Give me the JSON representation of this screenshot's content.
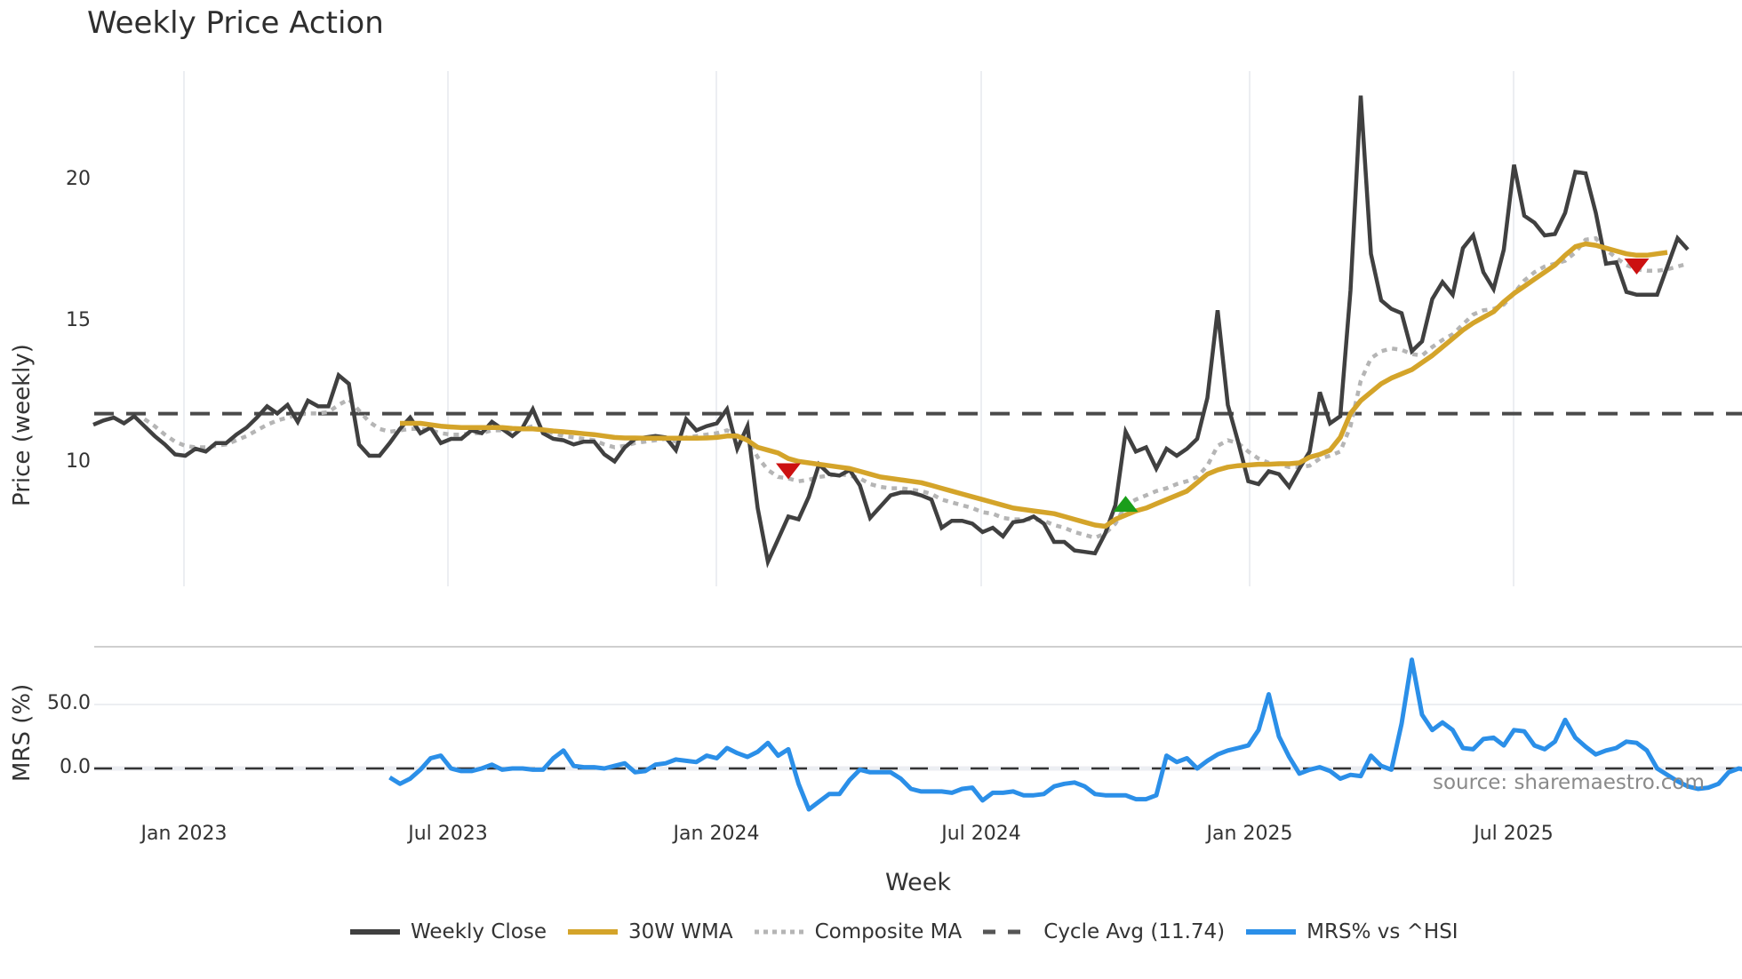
{
  "title": "Weekly Price Action",
  "axes": {
    "price_ylabel": "Price (weekly)",
    "mrs_ylabel": "MRS (%)",
    "xlabel": "Week",
    "price_yticks": [
      "20",
      "15",
      "10"
    ],
    "mrs_yticks": [
      "50.0",
      "0.0"
    ],
    "xticks": [
      "Jan 2023",
      "Jul 2023",
      "Jan 2024",
      "Jul 2024",
      "Jan 2025",
      "Jul 2025"
    ]
  },
  "source": "source: sharemaestro.com",
  "legend": [
    {
      "label": "Weekly Close",
      "color": "#404040",
      "style": "solid"
    },
    {
      "label": "30W WMA",
      "color": "#d4a42a",
      "style": "solid"
    },
    {
      "label": "Composite MA",
      "color": "#b5b5b5",
      "style": "dotted"
    },
    {
      "label": "Cycle Avg (11.74)",
      "color": "#555555",
      "style": "dashed"
    },
    {
      "label": "MRS% vs ^HSI",
      "color": "#2b8fe8",
      "style": "solid"
    }
  ],
  "colors": {
    "close": "#404040",
    "wma": "#d4a42a",
    "composite": "#b5b5b5",
    "cycle": "#4a4a4a",
    "mrs": "#2b8fe8",
    "sell_marker": "#cc1111",
    "buy_marker": "#1a9e1a",
    "grid": "#eceef2"
  },
  "chart_data": [
    {
      "type": "line",
      "title": "Weekly Price Action",
      "xlabel": "Week",
      "ylabel": "Price (weekly)",
      "ylim": [
        5.5,
        23.5
      ],
      "x_start": "2022-11-07",
      "x_step": "1 week",
      "cycle_avg": 11.74,
      "series": [
        {
          "name": "Weekly Close",
          "values": [
            11.35,
            11.5,
            11.6,
            11.4,
            11.65,
            11.3,
            10.95,
            10.65,
            10.3,
            10.25,
            10.5,
            10.4,
            10.7,
            10.7,
            11.0,
            11.25,
            11.6,
            12.0,
            11.75,
            12.05,
            11.45,
            12.2,
            12.0,
            12.0,
            13.1,
            12.8,
            10.65,
            10.25,
            10.25,
            10.7,
            11.2,
            11.6,
            11.05,
            11.25,
            10.7,
            10.85,
            10.85,
            11.15,
            11.05,
            11.45,
            11.2,
            10.95,
            11.25,
            11.9,
            11.05,
            10.85,
            10.8,
            10.65,
            10.75,
            10.75,
            10.3,
            10.05,
            10.55,
            10.85,
            10.9,
            10.95,
            10.9,
            10.45,
            11.55,
            11.15,
            11.3,
            11.4,
            11.9,
            10.5,
            11.3,
            8.4,
            6.5,
            7.3,
            8.1,
            8.0,
            8.8,
            9.95,
            9.6,
            9.55,
            9.75,
            9.2,
            8.05,
            8.45,
            8.85,
            8.95,
            8.95,
            8.85,
            8.7,
            7.7,
            7.95,
            7.95,
            7.85,
            7.55,
            7.7,
            7.4,
            7.9,
            7.95,
            8.1,
            7.85,
            7.2,
            7.2,
            6.9,
            6.85,
            6.8,
            7.5,
            8.5,
            11.1,
            10.4,
            10.55,
            9.8,
            10.5,
            10.25,
            10.5,
            10.85,
            12.3,
            15.4,
            12.05,
            10.75,
            9.35,
            9.25,
            9.7,
            9.6,
            9.15,
            9.8,
            10.4,
            12.5,
            11.4,
            11.65,
            16.1,
            23.0,
            17.4,
            15.75,
            15.45,
            15.3,
            13.95,
            14.3,
            15.8,
            16.4,
            15.95,
            17.6,
            18.05,
            16.75,
            16.15,
            17.55,
            20.55,
            18.75,
            18.5,
            18.05,
            18.1,
            18.85,
            20.3,
            20.25,
            18.85,
            17.05,
            17.1,
            16.05,
            15.95,
            15.95,
            15.95,
            16.95,
            17.95,
            17.55
          ]
        },
        {
          "name": "30W WMA",
          "values": [
            null,
            null,
            null,
            null,
            null,
            null,
            null,
            null,
            null,
            null,
            null,
            null,
            null,
            null,
            null,
            null,
            null,
            null,
            null,
            null,
            null,
            null,
            null,
            null,
            null,
            null,
            null,
            null,
            null,
            null,
            11.4,
            11.4,
            11.4,
            11.35,
            11.3,
            11.27,
            11.25,
            11.25,
            11.25,
            11.25,
            11.25,
            11.22,
            11.2,
            11.2,
            11.17,
            11.13,
            11.1,
            11.07,
            11.03,
            11.0,
            10.95,
            10.9,
            10.88,
            10.88,
            10.87,
            10.87,
            10.87,
            10.87,
            10.87,
            10.87,
            10.88,
            10.9,
            10.95,
            10.95,
            10.8,
            10.55,
            10.45,
            10.35,
            10.15,
            10.05,
            10.0,
            9.95,
            9.9,
            9.85,
            9.8,
            9.7,
            9.6,
            9.5,
            9.45,
            9.4,
            9.35,
            9.3,
            9.2,
            9.1,
            9.0,
            8.9,
            8.8,
            8.7,
            8.6,
            8.5,
            8.4,
            8.35,
            8.3,
            8.25,
            8.2,
            8.1,
            8.0,
            7.9,
            7.8,
            7.75,
            8.0,
            8.15,
            8.3,
            8.4,
            8.55,
            8.7,
            8.85,
            9.0,
            9.3,
            9.6,
            9.75,
            9.85,
            9.9,
            9.92,
            9.95,
            9.95,
            9.97,
            9.97,
            10.0,
            10.2,
            10.3,
            10.45,
            10.9,
            11.75,
            12.2,
            12.5,
            12.8,
            13.0,
            13.15,
            13.3,
            13.55,
            13.8,
            14.1,
            14.4,
            14.7,
            14.95,
            15.15,
            15.35,
            15.7,
            16.0,
            16.25,
            16.5,
            16.75,
            17.0,
            17.35,
            17.65,
            17.75,
            17.7,
            17.6,
            17.5,
            17.4,
            17.35,
            17.35,
            17.4,
            17.45
          ]
        },
        {
          "name": "Composite MA",
          "values": [
            null,
            null,
            null,
            null,
            null,
            11.55,
            11.3,
            11.0,
            10.75,
            10.6,
            10.55,
            10.55,
            10.6,
            10.65,
            10.8,
            10.95,
            11.15,
            11.35,
            11.5,
            11.6,
            11.7,
            11.75,
            11.75,
            11.8,
            12.05,
            12.25,
            11.85,
            11.45,
            11.2,
            11.1,
            11.15,
            11.2,
            11.2,
            11.15,
            11.05,
            11.0,
            11.0,
            11.05,
            11.05,
            11.15,
            11.15,
            11.15,
            11.2,
            11.3,
            11.15,
            11.05,
            10.95,
            10.9,
            10.85,
            10.8,
            10.65,
            10.55,
            10.6,
            10.7,
            10.75,
            10.8,
            10.85,
            10.75,
            10.9,
            10.95,
            11.0,
            11.05,
            11.15,
            10.95,
            10.85,
            10.2,
            9.75,
            9.5,
            9.45,
            9.35,
            9.4,
            9.5,
            9.55,
            9.6,
            9.55,
            9.45,
            9.25,
            9.15,
            9.1,
            9.1,
            9.05,
            9.0,
            8.9,
            8.7,
            8.6,
            8.5,
            8.4,
            8.25,
            8.2,
            8.05,
            8.0,
            8.0,
            8.0,
            7.95,
            7.8,
            7.7,
            7.55,
            7.45,
            7.35,
            7.5,
            7.85,
            8.5,
            8.7,
            8.85,
            9.0,
            9.1,
            9.25,
            9.35,
            9.5,
            9.9,
            10.6,
            10.8,
            10.7,
            10.4,
            10.15,
            10.0,
            9.95,
            9.85,
            9.85,
            9.9,
            10.15,
            10.25,
            10.4,
            11.3,
            12.9,
            13.7,
            13.95,
            14.05,
            14.0,
            13.85,
            13.8,
            14.1,
            14.35,
            14.55,
            14.9,
            15.25,
            15.4,
            15.45,
            15.6,
            16.0,
            16.45,
            16.75,
            16.95,
            17.05,
            17.15,
            17.45,
            17.9,
            17.95,
            17.55,
            17.25,
            17.0,
            16.85,
            16.8,
            16.8,
            16.85,
            16.95,
            17.05
          ]
        }
      ],
      "markers": [
        {
          "type": "sell",
          "shape": "triangle-down",
          "week_index": 68,
          "price": 9.7
        },
        {
          "type": "buy",
          "shape": "triangle-up",
          "week_index": 101,
          "price": 8.55
        },
        {
          "type": "sell",
          "shape": "triangle-down",
          "week_index": 151,
          "price": 16.95
        }
      ],
      "yticks": [
        10,
        15,
        20
      ],
      "xticks": [
        "Jan 2023",
        "Jul 2023",
        "Jan 2024",
        "Jul 2024",
        "Jan 2025",
        "Jul 2025"
      ]
    },
    {
      "type": "line",
      "title": "",
      "xlabel": "Week",
      "ylabel": "MRS (%)",
      "ylim": [
        -45,
        100
      ],
      "x_start": "2022-11-07",
      "x_step": "1 week",
      "reference_line": 0.0,
      "series": [
        {
          "name": "MRS% vs ^HSI",
          "values": [
            null,
            null,
            null,
            null,
            null,
            null,
            null,
            null,
            null,
            null,
            null,
            null,
            null,
            null,
            null,
            null,
            null,
            null,
            null,
            null,
            null,
            null,
            null,
            null,
            null,
            null,
            null,
            null,
            null,
            -7,
            -12,
            -8,
            -1,
            8,
            10,
            0,
            -2,
            -2,
            0,
            3,
            -1,
            0,
            0,
            -1,
            -1,
            8,
            14,
            2,
            1,
            1,
            0,
            2,
            4,
            -3,
            -2,
            3,
            4,
            7,
            6,
            5,
            10,
            8,
            16,
            12,
            9,
            13,
            20,
            10,
            15,
            -12,
            -32,
            -26,
            -20,
            -20,
            -9,
            -1,
            -3,
            -3,
            -3,
            -8,
            -16,
            -18,
            -18,
            -18,
            -19,
            -16,
            -15,
            -25,
            -19,
            -19,
            -18,
            -21,
            -21,
            -20,
            -14,
            -12,
            -11,
            -14,
            -20,
            -21,
            -21,
            -21,
            -24,
            -24,
            -21,
            10,
            5,
            8,
            0,
            6,
            11,
            14,
            16,
            18,
            30,
            58,
            25,
            9,
            -4,
            -1,
            1,
            -2,
            -8,
            -5,
            -6,
            10,
            2,
            -1,
            35,
            85,
            42,
            30,
            36,
            30,
            16,
            15,
            23,
            24,
            18,
            30,
            29,
            18,
            15,
            21,
            38,
            24,
            17,
            11,
            14,
            16,
            21,
            20,
            14,
            0,
            -5,
            -10,
            -14,
            -16,
            -15,
            -12,
            -3,
            0,
            -2
          ]
        }
      ],
      "yticks": [
        0.0,
        50.0
      ]
    }
  ]
}
